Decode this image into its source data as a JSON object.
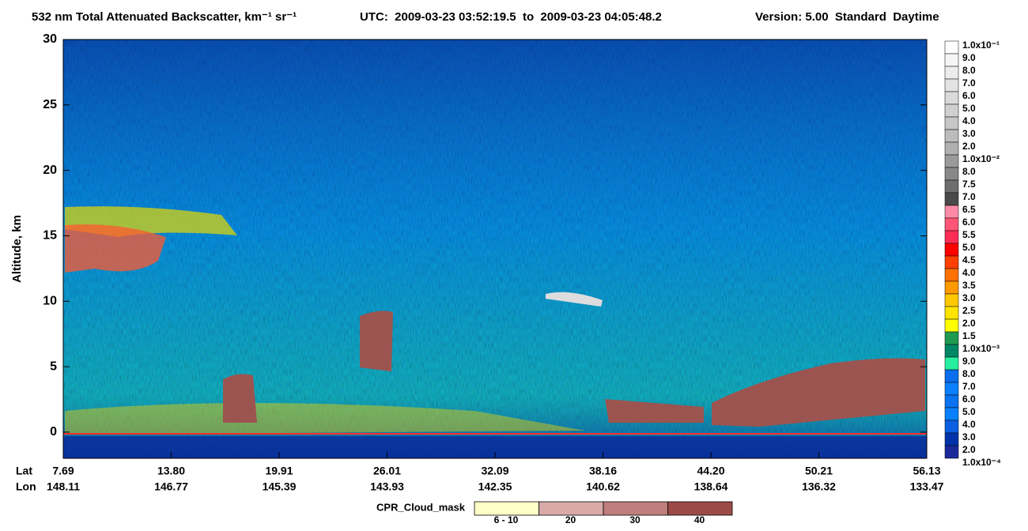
{
  "chart_data": {
    "type": "heatmap",
    "title": "532 nm Total Attenuated Backscatter, km⁻¹ sr⁻¹",
    "subtitle": "UTC:  2009-03-23 03:52:19.5  to  2009-03-23 04:05:48.2",
    "version": "Version: 5.00  Standard  Daytime",
    "ylabel": "Altitude, km",
    "ylim": [
      -2,
      30
    ],
    "yticks": [
      0,
      5,
      10,
      15,
      20,
      25,
      30
    ],
    "x_rows": [
      {
        "name": "Lat",
        "values": [
          7.69,
          {
            "value": 13.8,
            "label": "13.80"
          },
          19.91,
          26.01,
          32.09,
          38.16,
          {
            "value": 44.2,
            "label": "44.20"
          },
          50.21,
          56.13
        ]
      },
      {
        "name": "Lon",
        "values": [
          148.11,
          146.77,
          145.39,
          143.93,
          142.35,
          140.62,
          138.64,
          136.32,
          133.47
        ]
      }
    ],
    "colorbar": {
      "labels": [
        "1.0x10⁻¹",
        "9.0",
        "8.0",
        "7.0",
        "6.0",
        "5.0",
        "4.0",
        "3.0",
        "2.0",
        "1.0x10⁻²",
        "8.0",
        "7.5",
        "7.0",
        "6.5",
        "6.0",
        "5.5",
        "5.0",
        "4.5",
        "4.0",
        "3.5",
        "3.0",
        "2.5",
        "2.0",
        "1.5",
        "1.0x10⁻³",
        "9.0",
        "8.0",
        "7.0",
        "6.0",
        "5.0",
        "4.0",
        "3.0",
        "2.0",
        "1.0x10⁻⁴"
      ],
      "colors": [
        "#ffffff",
        "#f5f5f5",
        "#ececec",
        "#e3e3e3",
        "#dadada",
        "#d0d0d0",
        "#c6c6c6",
        "#bcbcbc",
        "#b0b0b0",
        "#9a9a9a",
        "#888888",
        "#6e6e6e",
        "#4a4a4a",
        "#ff8aa8",
        "#ff5577",
        "#ff2d55",
        "#ff0000",
        "#ff4000",
        "#ff7000",
        "#ff9a00",
        "#ffc800",
        "#ffe400",
        "#ffff00",
        "#1f9a50",
        "#008866",
        "#26f0a0",
        "#0a6eee",
        "#0a80ff",
        "#0b72f0",
        "#0a80ff",
        "#0a60e0",
        "#0033aa",
        "#1a2a9a"
      ]
    },
    "cpr_legend": {
      "title": "CPR_Cloud_mask",
      "items": [
        {
          "name": "6 - 10",
          "color": "#ffffc8"
        },
        {
          "name": "20",
          "color": "#d9aaa8"
        },
        {
          "name": "30",
          "color": "#bf7f7c"
        },
        {
          "name": "40",
          "color": "#9c4a47"
        }
      ]
    }
  }
}
